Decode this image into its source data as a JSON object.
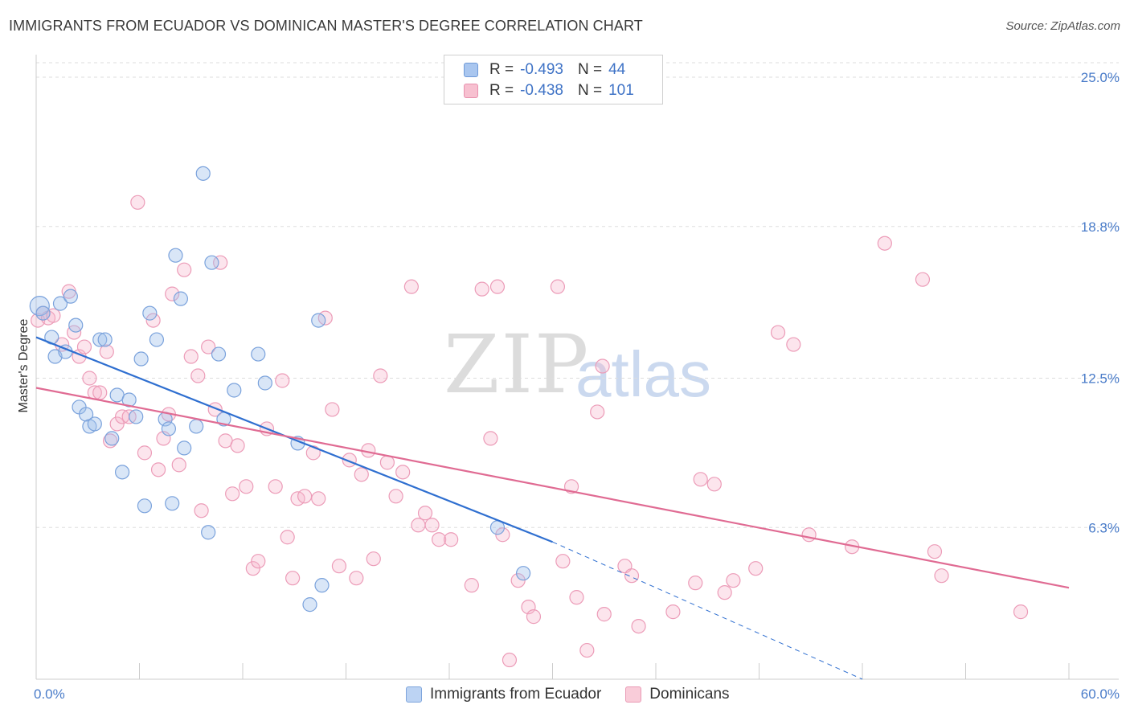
{
  "title": "IMMIGRANTS FROM ECUADOR VS DOMINICAN MASTER'S DEGREE CORRELATION CHART",
  "source": "Source: ZipAtlas.com",
  "watermark": {
    "zip": "ZIP",
    "atlas": "atlas"
  },
  "legend": {
    "rows": [
      {
        "r_label": "R =",
        "r_value": "-0.493",
        "n_label": "N =",
        "n_value": "44",
        "color": "#a9c6ef",
        "border": "#6f9ad8"
      },
      {
        "r_label": "R =",
        "r_value": "-0.438",
        "n_label": "N =",
        "n_value": "101",
        "color": "#f7c0d0",
        "border": "#e891ae"
      }
    ]
  },
  "bottom_legend": [
    {
      "label": "Immigrants from Ecuador",
      "color": "#bcd3f3",
      "border": "#7ea5dc"
    },
    {
      "label": "Dominicans",
      "color": "#f9ccd9",
      "border": "#e99ab5"
    }
  ],
  "colors": {
    "ecuador_fill": "rgba(160,192,236,0.40)",
    "ecuador_stroke": "#7aa2dc",
    "ecuador_line": "#2f6fd0",
    "dominican_fill": "rgba(246,180,202,0.35)",
    "dominican_stroke": "#ec9cb8",
    "dominican_line": "#e06b93",
    "grid": "#dddddd"
  },
  "chart_data": {
    "type": "scatter",
    "title": "IMMIGRANTS FROM ECUADOR VS DOMINICAN MASTER'S DEGREE CORRELATION CHART",
    "xlabel": "",
    "ylabel": "Master's Degree",
    "xlim": [
      0,
      60
    ],
    "ylim": [
      0,
      25.0
    ],
    "x_tick_labels": [
      {
        "value": 0,
        "label": "0.0%"
      },
      {
        "value": 60,
        "label": "60.0%"
      }
    ],
    "y_tick_labels": [
      {
        "value": 6.3,
        "label": "6.3%"
      },
      {
        "value": 12.5,
        "label": "12.5%"
      },
      {
        "value": 18.8,
        "label": "18.8%"
      },
      {
        "value": 25.0,
        "label": "25.0%"
      }
    ],
    "grid": true,
    "legend_placement": "top-center",
    "series": [
      {
        "name": "Immigrants from Ecuador",
        "points": [
          [
            0.2,
            15.5
          ],
          [
            0.4,
            15.2
          ],
          [
            0.9,
            14.2
          ],
          [
            1.1,
            13.4
          ],
          [
            1.4,
            15.6
          ],
          [
            1.7,
            13.6
          ],
          [
            2.0,
            15.9
          ],
          [
            2.3,
            14.7
          ],
          [
            2.5,
            11.3
          ],
          [
            2.9,
            11.0
          ],
          [
            3.1,
            10.5
          ],
          [
            3.4,
            10.6
          ],
          [
            3.7,
            14.1
          ],
          [
            4.0,
            14.1
          ],
          [
            4.4,
            10.0
          ],
          [
            4.7,
            11.8
          ],
          [
            5.0,
            8.6
          ],
          [
            5.4,
            11.6
          ],
          [
            5.8,
            10.9
          ],
          [
            6.1,
            13.3
          ],
          [
            6.3,
            7.2
          ],
          [
            6.6,
            15.2
          ],
          [
            7.0,
            14.1
          ],
          [
            7.5,
            10.8
          ],
          [
            7.7,
            10.4
          ],
          [
            7.9,
            7.3
          ],
          [
            8.1,
            17.6
          ],
          [
            8.4,
            15.8
          ],
          [
            8.6,
            9.6
          ],
          [
            9.3,
            10.5
          ],
          [
            9.7,
            21.0
          ],
          [
            10.0,
            6.1
          ],
          [
            10.2,
            17.3
          ],
          [
            10.6,
            13.5
          ],
          [
            10.9,
            10.8
          ],
          [
            11.5,
            12.0
          ],
          [
            12.9,
            13.5
          ],
          [
            13.3,
            12.3
          ],
          [
            15.2,
            9.8
          ],
          [
            15.9,
            3.1
          ],
          [
            16.4,
            14.9
          ],
          [
            16.6,
            3.9
          ],
          [
            26.8,
            6.3
          ],
          [
            28.3,
            4.4
          ]
        ]
      },
      {
        "name": "Dominicans",
        "points": [
          [
            0.1,
            14.9
          ],
          [
            0.4,
            15.2
          ],
          [
            0.7,
            15.0
          ],
          [
            1.0,
            15.1
          ],
          [
            1.5,
            13.9
          ],
          [
            1.9,
            16.1
          ],
          [
            2.2,
            14.4
          ],
          [
            2.5,
            13.4
          ],
          [
            2.8,
            13.8
          ],
          [
            3.1,
            12.5
          ],
          [
            3.4,
            11.9
          ],
          [
            3.7,
            11.9
          ],
          [
            4.1,
            13.6
          ],
          [
            4.3,
            9.9
          ],
          [
            4.7,
            10.6
          ],
          [
            5.0,
            10.9
          ],
          [
            5.4,
            10.9
          ],
          [
            5.9,
            19.8
          ],
          [
            6.3,
            9.4
          ],
          [
            6.8,
            14.9
          ],
          [
            7.1,
            8.7
          ],
          [
            7.4,
            10.0
          ],
          [
            7.7,
            11.0
          ],
          [
            7.9,
            16.0
          ],
          [
            8.3,
            8.9
          ],
          [
            8.6,
            17.0
          ],
          [
            9.0,
            13.4
          ],
          [
            9.4,
            12.6
          ],
          [
            9.6,
            7.0
          ],
          [
            10.0,
            13.8
          ],
          [
            10.4,
            11.2
          ],
          [
            10.7,
            17.3
          ],
          [
            11.0,
            9.9
          ],
          [
            11.4,
            7.7
          ],
          [
            11.7,
            9.7
          ],
          [
            12.2,
            8.0
          ],
          [
            12.6,
            4.6
          ],
          [
            12.9,
            4.9
          ],
          [
            13.4,
            10.4
          ],
          [
            13.9,
            8.0
          ],
          [
            14.3,
            12.4
          ],
          [
            14.6,
            5.9
          ],
          [
            14.9,
            4.2
          ],
          [
            15.2,
            7.5
          ],
          [
            15.6,
            7.6
          ],
          [
            16.1,
            9.4
          ],
          [
            16.4,
            7.5
          ],
          [
            16.8,
            15.0
          ],
          [
            17.2,
            11.2
          ],
          [
            17.6,
            4.7
          ],
          [
            18.2,
            9.1
          ],
          [
            18.6,
            4.2
          ],
          [
            18.9,
            8.5
          ],
          [
            19.3,
            9.5
          ],
          [
            19.6,
            5.0
          ],
          [
            20.0,
            12.6
          ],
          [
            20.4,
            9.0
          ],
          [
            20.9,
            7.6
          ],
          [
            21.3,
            8.6
          ],
          [
            21.8,
            16.3
          ],
          [
            22.2,
            6.4
          ],
          [
            22.6,
            6.9
          ],
          [
            23.0,
            6.4
          ],
          [
            23.4,
            5.8
          ],
          [
            24.1,
            5.8
          ],
          [
            25.3,
            3.9
          ],
          [
            25.9,
            16.2
          ],
          [
            26.4,
            10.0
          ],
          [
            26.8,
            16.3
          ],
          [
            27.1,
            6.0
          ],
          [
            27.5,
            0.8
          ],
          [
            28.0,
            4.1
          ],
          [
            28.6,
            3.0
          ],
          [
            28.9,
            2.6
          ],
          [
            30.3,
            16.3
          ],
          [
            30.6,
            4.9
          ],
          [
            31.1,
            8.0
          ],
          [
            31.4,
            3.4
          ],
          [
            32.0,
            1.2
          ],
          [
            32.6,
            11.1
          ],
          [
            32.9,
            13.0
          ],
          [
            33.0,
            2.7
          ],
          [
            34.2,
            4.7
          ],
          [
            34.6,
            4.3
          ],
          [
            35.0,
            2.2
          ],
          [
            37.0,
            2.8
          ],
          [
            38.3,
            4.0
          ],
          [
            38.6,
            8.3
          ],
          [
            39.4,
            8.1
          ],
          [
            40.0,
            3.6
          ],
          [
            40.5,
            4.1
          ],
          [
            41.8,
            4.6
          ],
          [
            43.1,
            14.4
          ],
          [
            44.0,
            13.9
          ],
          [
            44.9,
            6.0
          ],
          [
            47.4,
            5.5
          ],
          [
            49.3,
            18.1
          ],
          [
            51.5,
            16.6
          ],
          [
            52.2,
            5.3
          ],
          [
            52.6,
            4.3
          ],
          [
            57.2,
            2.8
          ]
        ]
      }
    ],
    "trend_lines": [
      {
        "series": "Immigrants from Ecuador",
        "x": [
          0,
          30.0
        ],
        "y": [
          14.2,
          5.7
        ],
        "dashed_extension_x": [
          30.0,
          48.0
        ],
        "dashed_extension_y": [
          5.7,
          0.0
        ]
      },
      {
        "series": "Dominicans",
        "x": [
          0,
          60
        ],
        "y": [
          12.1,
          3.8
        ]
      }
    ]
  }
}
